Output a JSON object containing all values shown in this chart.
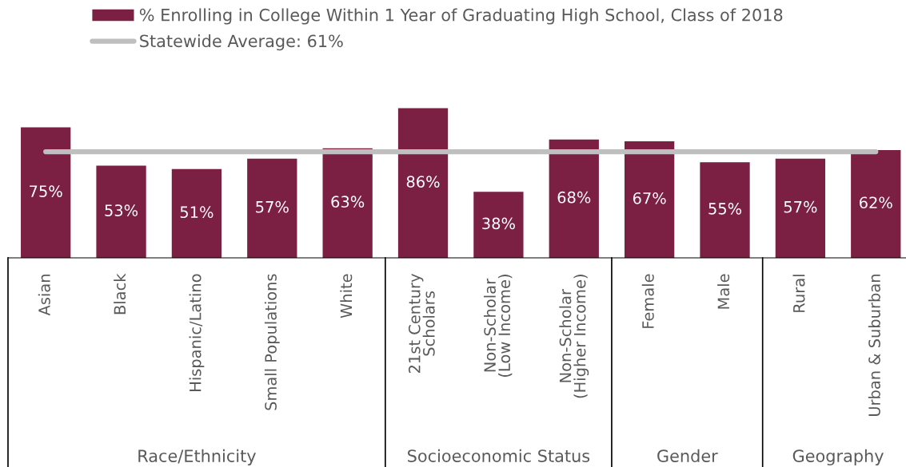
{
  "chart_data": {
    "type": "bar",
    "categories": [
      "Asian",
      "Black",
      "Hispanic/Latino",
      "Small Populations",
      "White",
      "21st Century\nScholars",
      "Non-Scholar\n(Low Income)",
      "Non-Scholar\n(Higher Income)",
      "Female",
      "Male",
      "Rural",
      "Urban & Suburban"
    ],
    "series": [
      {
        "name": "% Enrolling in College Within 1 Year of Graduating High School, Class of 2018",
        "color": "#7b2042",
        "values": [
          75,
          53,
          51,
          57,
          63,
          86,
          38,
          68,
          67,
          55,
          57,
          62
        ],
        "value_labels": [
          "75%",
          "53%",
          "51%",
          "57%",
          "63%",
          "86%",
          "38%",
          "68%",
          "67%",
          "55%",
          "57%",
          "62%"
        ]
      }
    ],
    "ref_lines": [
      {
        "axis": "y",
        "value": 61,
        "label": "Statewide Average: 61%",
        "color": "#bfbfbf",
        "line_style": "solid"
      }
    ],
    "annotations": [
      "Race/Ethnicity",
      "Socioeconomic Status",
      "Gender",
      "Geography"
    ],
    "legend": "top",
    "grid": false
  }
}
